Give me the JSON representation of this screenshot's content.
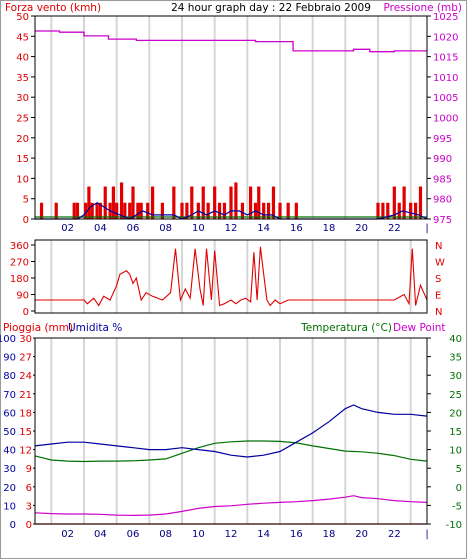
{
  "header": {
    "title": "24 hour graph day : 22 Febbraio 2009",
    "left_label": "Forza vento (kmh)",
    "right_label": "Pressione (mb)"
  },
  "bottom_header": {
    "rain_label": "Pioggia (mm)",
    "humidity_label": "Umidita %",
    "temp_label": "Temperatura (°C)",
    "dew_label": "Dew Point"
  },
  "colors": {
    "wind": "#e00000",
    "wind_avg": "#0000a0",
    "pressure": "#cc00cc",
    "temperature": "#007000",
    "humidity": "#0000a0",
    "dewpoint": "#cc00cc",
    "rain": "#e00000",
    "grid": "#d6d6d6",
    "frame": "#000000"
  },
  "chart_data": [
    {
      "type": "line",
      "name": "wind-pressure",
      "x_ticks": [
        "02",
        "04",
        "06",
        "08",
        "10",
        "12",
        "14",
        "16",
        "18",
        "20",
        "22",
        "|"
      ],
      "left_axis": {
        "ticks": [
          0,
          5,
          10,
          15,
          20,
          25,
          30,
          35,
          40,
          45,
          50
        ],
        "ylim": [
          0,
          50
        ]
      },
      "right_axis": {
        "ticks": [
          975,
          980,
          985,
          990,
          995,
          1000,
          1005,
          1010,
          1015,
          1020,
          1025
        ],
        "ylim": [
          975,
          1025
        ]
      },
      "pressure": {
        "x": [
          0,
          1.5,
          3,
          4.5,
          6.2,
          7.2,
          8.7,
          10.5,
          13.5,
          15.8,
          18,
          19.5,
          20.5,
          22,
          24
        ],
        "y": [
          1021.3,
          1021.0,
          1020.1,
          1019.3,
          1019.0,
          1019.0,
          1019.0,
          1019.0,
          1018.7,
          1016.4,
          1016.4,
          1016.8,
          1016.2,
          1016.4,
          1016.4
        ]
      },
      "wind_gusts": {
        "x": [
          0.4,
          1.3,
          2.4,
          2.6,
          3.1,
          3.3,
          3.5,
          3.8,
          4.0,
          4.3,
          4.6,
          4.8,
          5.0,
          5.3,
          5.5,
          5.8,
          6.0,
          6.3,
          6.5,
          6.9,
          7.2,
          7.8,
          8.5,
          9.0,
          9.3,
          9.6,
          10.0,
          10.3,
          10.6,
          11.0,
          11.3,
          11.6,
          12.0,
          12.3,
          12.7,
          13.2,
          13.5,
          13.7,
          14.0,
          14.3,
          14.6,
          15.0,
          15.5,
          16.0,
          21.0,
          21.3,
          21.6,
          22.0,
          22.3,
          22.6,
          23.0,
          23.3,
          23.6
        ],
        "y": [
          4,
          4,
          4,
          4,
          4,
          8,
          4,
          4,
          4,
          8,
          4,
          8,
          4,
          9,
          4,
          4,
          8,
          4,
          4,
          4,
          8,
          4,
          8,
          4,
          4,
          8,
          4,
          8,
          4,
          8,
          4,
          4,
          8,
          9,
          4,
          8,
          4,
          8,
          4,
          4,
          8,
          4,
          4,
          4,
          4,
          4,
          4,
          8,
          4,
          8,
          4,
          4,
          8
        ]
      },
      "wind_avg": {
        "x": [
          0,
          2.6,
          3.0,
          3.4,
          3.8,
          4.2,
          4.6,
          5.2,
          5.8,
          6.2,
          6.6,
          7.2,
          7.8,
          8.5,
          9.0,
          9.6,
          10.0,
          10.5,
          11.0,
          11.6,
          12.0,
          12.5,
          13.0,
          13.5,
          14.0,
          14.5,
          15.0,
          16.0,
          21.0,
          22.0,
          22.5,
          23.5,
          24
        ],
        "y": [
          0,
          0,
          1,
          3,
          4,
          3,
          2,
          1,
          0,
          1,
          2,
          1,
          1,
          1,
          0,
          1,
          2,
          1,
          2,
          1,
          2,
          2,
          1,
          2,
          1,
          1,
          0,
          0,
          0,
          1,
          2,
          1,
          0
        ]
      },
      "wind_dir_trace": {
        "x": [
          0,
          24
        ],
        "y": [
          0.5,
          0.5
        ]
      }
    },
    {
      "type": "line",
      "name": "wind-direction",
      "x_ticks": [],
      "left_axis": {
        "ticks": [
          0,
          90,
          180,
          270,
          360
        ],
        "ylim": [
          0,
          360
        ]
      },
      "right_axis": {
        "ticks": [
          "N",
          "W",
          "S",
          "E",
          "N"
        ]
      },
      "direction": {
        "x": [
          0,
          3.0,
          3.2,
          3.6,
          3.9,
          4.2,
          4.6,
          5.0,
          5.2,
          5.4,
          5.6,
          5.8,
          6.0,
          6.2,
          6.5,
          6.8,
          7.2,
          7.8,
          8.3,
          8.6,
          8.9,
          9.2,
          9.5,
          9.8,
          10.1,
          10.3,
          10.5,
          10.8,
          11.0,
          11.3,
          11.6,
          12.0,
          12.3,
          12.6,
          12.9,
          13.2,
          13.4,
          13.6,
          13.8,
          14.0,
          14.2,
          14.4,
          14.7,
          15.0,
          15.5,
          16.0,
          22.0,
          22.6,
          22.9,
          23.1,
          23.3,
          23.6,
          24
        ],
        "y": [
          60,
          60,
          40,
          70,
          30,
          80,
          60,
          140,
          200,
          210,
          220,
          200,
          150,
          180,
          60,
          100,
          80,
          60,
          100,
          340,
          60,
          120,
          70,
          340,
          120,
          30,
          340,
          60,
          330,
          30,
          40,
          60,
          40,
          60,
          70,
          50,
          320,
          60,
          350,
          200,
          60,
          30,
          60,
          40,
          60,
          60,
          60,
          90,
          40,
          340,
          30,
          140,
          60
        ]
      }
    },
    {
      "type": "line",
      "name": "temp-humidity-rain",
      "x_ticks": [
        "02",
        "04",
        "06",
        "08",
        "10",
        "12",
        "14",
        "16",
        "18",
        "20",
        "22",
        "|"
      ],
      "humidity_axis": {
        "ticks": [
          0,
          10,
          20,
          30,
          40,
          50,
          60,
          70,
          80,
          90,
          100
        ],
        "ylim": [
          0,
          100
        ]
      },
      "rain_axis": {
        "ticks": [
          0,
          3,
          6,
          9,
          12,
          15,
          18,
          21,
          24,
          27,
          30
        ],
        "ylim": [
          0,
          30
        ]
      },
      "temp_axis": {
        "ticks": [
          -10,
          -5,
          0,
          5,
          10,
          15,
          20,
          25,
          30,
          35,
          40
        ],
        "ylim": [
          -10,
          40
        ]
      },
      "humidity": {
        "x": [
          0,
          1,
          2,
          3,
          4,
          5,
          6,
          7,
          8,
          9,
          10,
          11,
          12,
          13,
          14,
          15,
          16,
          17,
          18,
          19,
          19.5,
          20,
          21,
          22,
          23,
          24
        ],
        "y": [
          42,
          43,
          44,
          44,
          43,
          42,
          41,
          40,
          40,
          41,
          40,
          39,
          37,
          36,
          37,
          39,
          44,
          49,
          55,
          62,
          64,
          62,
          60,
          59,
          59,
          58
        ]
      },
      "temperature": {
        "x": [
          0,
          1,
          2,
          3,
          4,
          5,
          6,
          7,
          8,
          9,
          10,
          11,
          12,
          13,
          14,
          15,
          16,
          17,
          18,
          19,
          20,
          21,
          22,
          23,
          24
        ],
        "y": [
          8.3,
          7.2,
          6.9,
          6.8,
          6.9,
          6.9,
          7.0,
          7.2,
          7.5,
          9.0,
          10.5,
          11.7,
          12.1,
          12.3,
          12.3,
          12.2,
          11.8,
          11.0,
          10.3,
          9.6,
          9.4,
          9.0,
          8.4,
          7.4,
          6.9
        ]
      },
      "dewpoint": {
        "x": [
          0,
          1,
          2,
          3,
          4,
          5,
          6,
          7,
          8,
          9,
          10,
          11,
          12,
          13,
          14,
          15,
          16,
          17,
          18,
          19,
          19.5,
          20,
          21,
          22,
          23,
          24
        ],
        "y": [
          -7.0,
          -7.2,
          -7.3,
          -7.3,
          -7.4,
          -7.6,
          -7.7,
          -7.6,
          -7.3,
          -6.6,
          -5.8,
          -5.3,
          -5.1,
          -4.7,
          -4.4,
          -4.2,
          -4.0,
          -3.7,
          -3.3,
          -2.8,
          -2.4,
          -2.9,
          -3.2,
          -3.7,
          -4.0,
          -4.2
        ]
      },
      "rain": {
        "x": [
          0,
          24
        ],
        "y": [
          0,
          0
        ]
      }
    }
  ]
}
